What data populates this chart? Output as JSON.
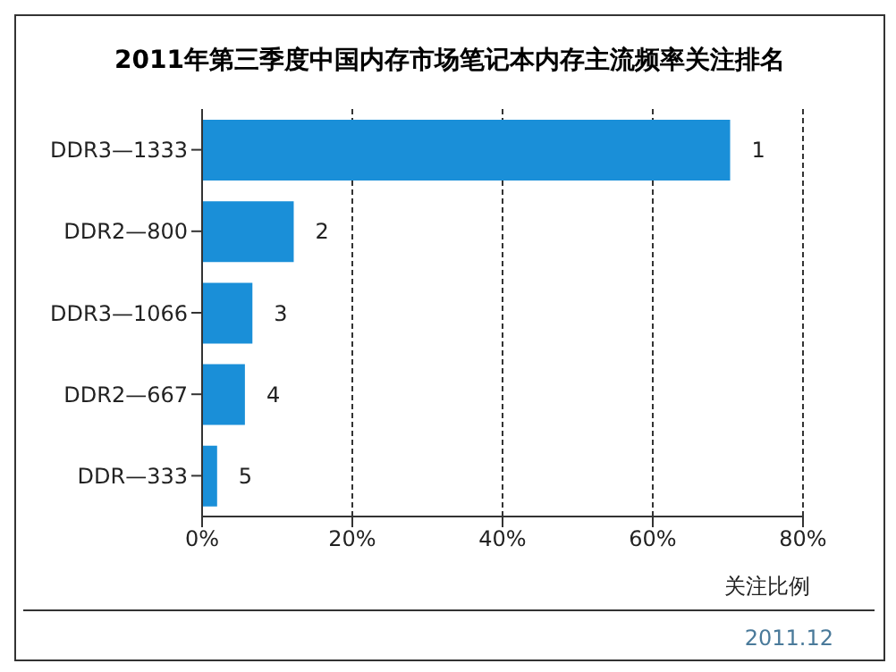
{
  "chart_data": {
    "type": "bar",
    "orientation": "horizontal",
    "title": "2011年第三季度中国内存市场笔记本内存主流频率关注排名",
    "xlabel": "关注比例",
    "categories": [
      "DDR3—1333",
      "DDR2—800",
      "DDR3—1066",
      "DDR2—667",
      "DDR—333"
    ],
    "values": [
      70.3,
      12.2,
      6.7,
      5.7,
      2.0
    ],
    "color": "#1a8fd8",
    "xlim": [
      0,
      80
    ],
    "xticks": [
      {
        "value": 0,
        "label": "0%"
      },
      {
        "value": 20,
        "label": "20%"
      },
      {
        "value": 40,
        "label": "40%"
      },
      {
        "value": 60,
        "label": "60%"
      },
      {
        "value": 80,
        "label": "80%"
      }
    ],
    "grid": "x",
    "annotations": [
      {
        "text": "1",
        "x": 70.3,
        "y": "DDR3—1333"
      },
      {
        "text": "2",
        "x": 12.2,
        "y": "DDR2—800"
      },
      {
        "text": "3",
        "x": 6.7,
        "y": "DDR3—1066"
      },
      {
        "text": "4",
        "x": 5.7,
        "y": "DDR2—667"
      },
      {
        "text": "5",
        "x": 2.0,
        "y": "DDR—333"
      },
      "2011.12"
    ]
  }
}
